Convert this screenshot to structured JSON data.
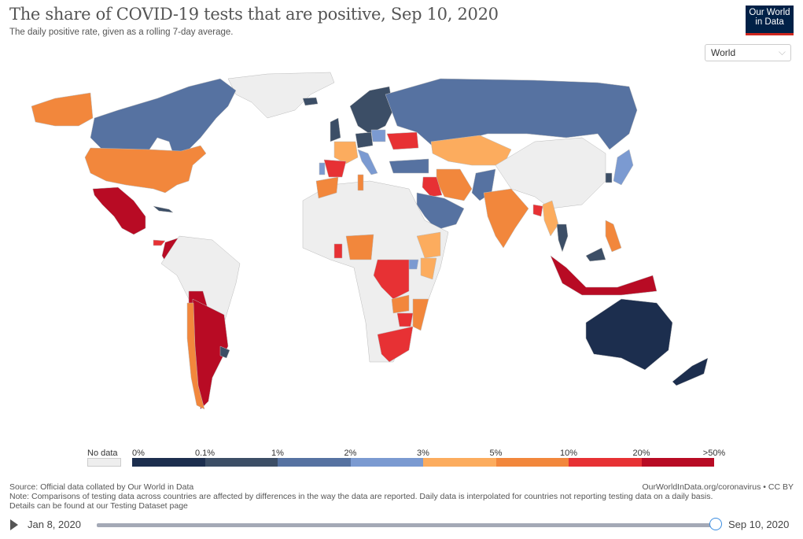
{
  "header": {
    "title": "The share of COVID-19 tests that are positive, Sep 10, 2020",
    "subtitle": "The daily positive rate, given as a rolling 7-day average.",
    "logo_line1": "Our World",
    "logo_line2": "in Data"
  },
  "region_selector": {
    "selected": "World",
    "icon": "chevron-down-icon"
  },
  "legend": {
    "no_data_label": "No data",
    "no_data_color": "#eeeeee",
    "bins": [
      {
        "from": "0%",
        "to": "0.1%",
        "color": "#1c2e4e"
      },
      {
        "from": "0.1%",
        "to": "1%",
        "color": "#3c4e66"
      },
      {
        "from": "1%",
        "to": "2%",
        "color": "#5672a1"
      },
      {
        "from": "2%",
        "to": "3%",
        "color": "#7b9ad1"
      },
      {
        "from": "3%",
        "to": "5%",
        "color": "#fcac5e"
      },
      {
        "from": "5%",
        "to": "10%",
        "color": "#f2873c"
      },
      {
        "from": "10%",
        "to": "20%",
        "color": "#e73134"
      },
      {
        "from": "20%",
        "to": ">50%",
        "color": "#b80b24"
      }
    ],
    "tick_labels": [
      "0%",
      "0.1%",
      "1%",
      "2%",
      "3%",
      "5%",
      "10%",
      "20%",
      ">50%"
    ]
  },
  "map_data": {
    "metric": "share of COVID-19 tests that are positive (7-day rolling average)",
    "date": "Sep 10, 2020",
    "regions": [
      {
        "name": "Canada",
        "bin": 2
      },
      {
        "name": "United States",
        "bin": 5
      },
      {
        "name": "Alaska",
        "bin": 5
      },
      {
        "name": "Greenland",
        "bin": -1
      },
      {
        "name": "Mexico",
        "bin": 7
      },
      {
        "name": "Cuba",
        "bin": 1
      },
      {
        "name": "Colombia",
        "bin": 7
      },
      {
        "name": "Panama",
        "bin": 6
      },
      {
        "name": "Costa Rica",
        "bin": 6
      },
      {
        "name": "Argentina",
        "bin": 7
      },
      {
        "name": "Bolivia",
        "bin": 7
      },
      {
        "name": "Paraguay",
        "bin": 7
      },
      {
        "name": "Chile",
        "bin": 5
      },
      {
        "name": "Uruguay",
        "bin": 1
      },
      {
        "name": "Brazil",
        "bin": -1
      },
      {
        "name": "Russia",
        "bin": 2
      },
      {
        "name": "Kazakhstan",
        "bin": 4
      },
      {
        "name": "China",
        "bin": -1
      },
      {
        "name": "India",
        "bin": 5
      },
      {
        "name": "Pakistan",
        "bin": 2
      },
      {
        "name": "Iran",
        "bin": 5
      },
      {
        "name": "Iraq",
        "bin": 6
      },
      {
        "name": "Saudi Arabia",
        "bin": 2
      },
      {
        "name": "Turkey",
        "bin": 2
      },
      {
        "name": "Ukraine",
        "bin": 6
      },
      {
        "name": "Spain",
        "bin": 6
      },
      {
        "name": "France",
        "bin": 4
      },
      {
        "name": "Portugal",
        "bin": 3
      },
      {
        "name": "United Kingdom",
        "bin": 1
      },
      {
        "name": "Norway/Sweden/Finland",
        "bin": 1
      },
      {
        "name": "Germany",
        "bin": 1
      },
      {
        "name": "Poland",
        "bin": 3
      },
      {
        "name": "Italy",
        "bin": 3
      },
      {
        "name": "Iceland",
        "bin": 1
      },
      {
        "name": "Morocco",
        "bin": 5
      },
      {
        "name": "Tunisia",
        "bin": 5
      },
      {
        "name": "Nigeria",
        "bin": 5
      },
      {
        "name": "Ghana",
        "bin": 6
      },
      {
        "name": "Ethiopia",
        "bin": 4
      },
      {
        "name": "Kenya",
        "bin": 4
      },
      {
        "name": "Uganda",
        "bin": 3
      },
      {
        "name": "DR Congo",
        "bin": 6
      },
      {
        "name": "Zambia",
        "bin": 5
      },
      {
        "name": "Mozambique",
        "bin": 5
      },
      {
        "name": "Zimbabwe",
        "bin": 6
      },
      {
        "name": "South Africa",
        "bin": 6
      },
      {
        "name": "Bangladesh",
        "bin": 6
      },
      {
        "name": "Myanmar",
        "bin": 4
      },
      {
        "name": "Thailand",
        "bin": 1
      },
      {
        "name": "Malaysia",
        "bin": 1
      },
      {
        "name": "Philippines",
        "bin": 5
      },
      {
        "name": "Indonesia",
        "bin": 7
      },
      {
        "name": "Japan",
        "bin": 3
      },
      {
        "name": "South Korea",
        "bin": 1
      },
      {
        "name": "Australia",
        "bin": 0
      },
      {
        "name": "New Zealand",
        "bin": 0
      }
    ]
  },
  "footer": {
    "source": "Source: Official data collated by Our World in Data",
    "note": "Note: Comparisons of testing data across countries are affected by differences in the way the data are reported. Daily data is interpolated for countries not reporting testing data on a daily basis.",
    "details": "Details can be found at our Testing Dataset page",
    "credit": "OurWorldInData.org/coronavirus • CC BY"
  },
  "timeline": {
    "start_label": "Jan 8, 2020",
    "end_label": "Sep 10, 2020",
    "position_fraction": 1.0
  }
}
